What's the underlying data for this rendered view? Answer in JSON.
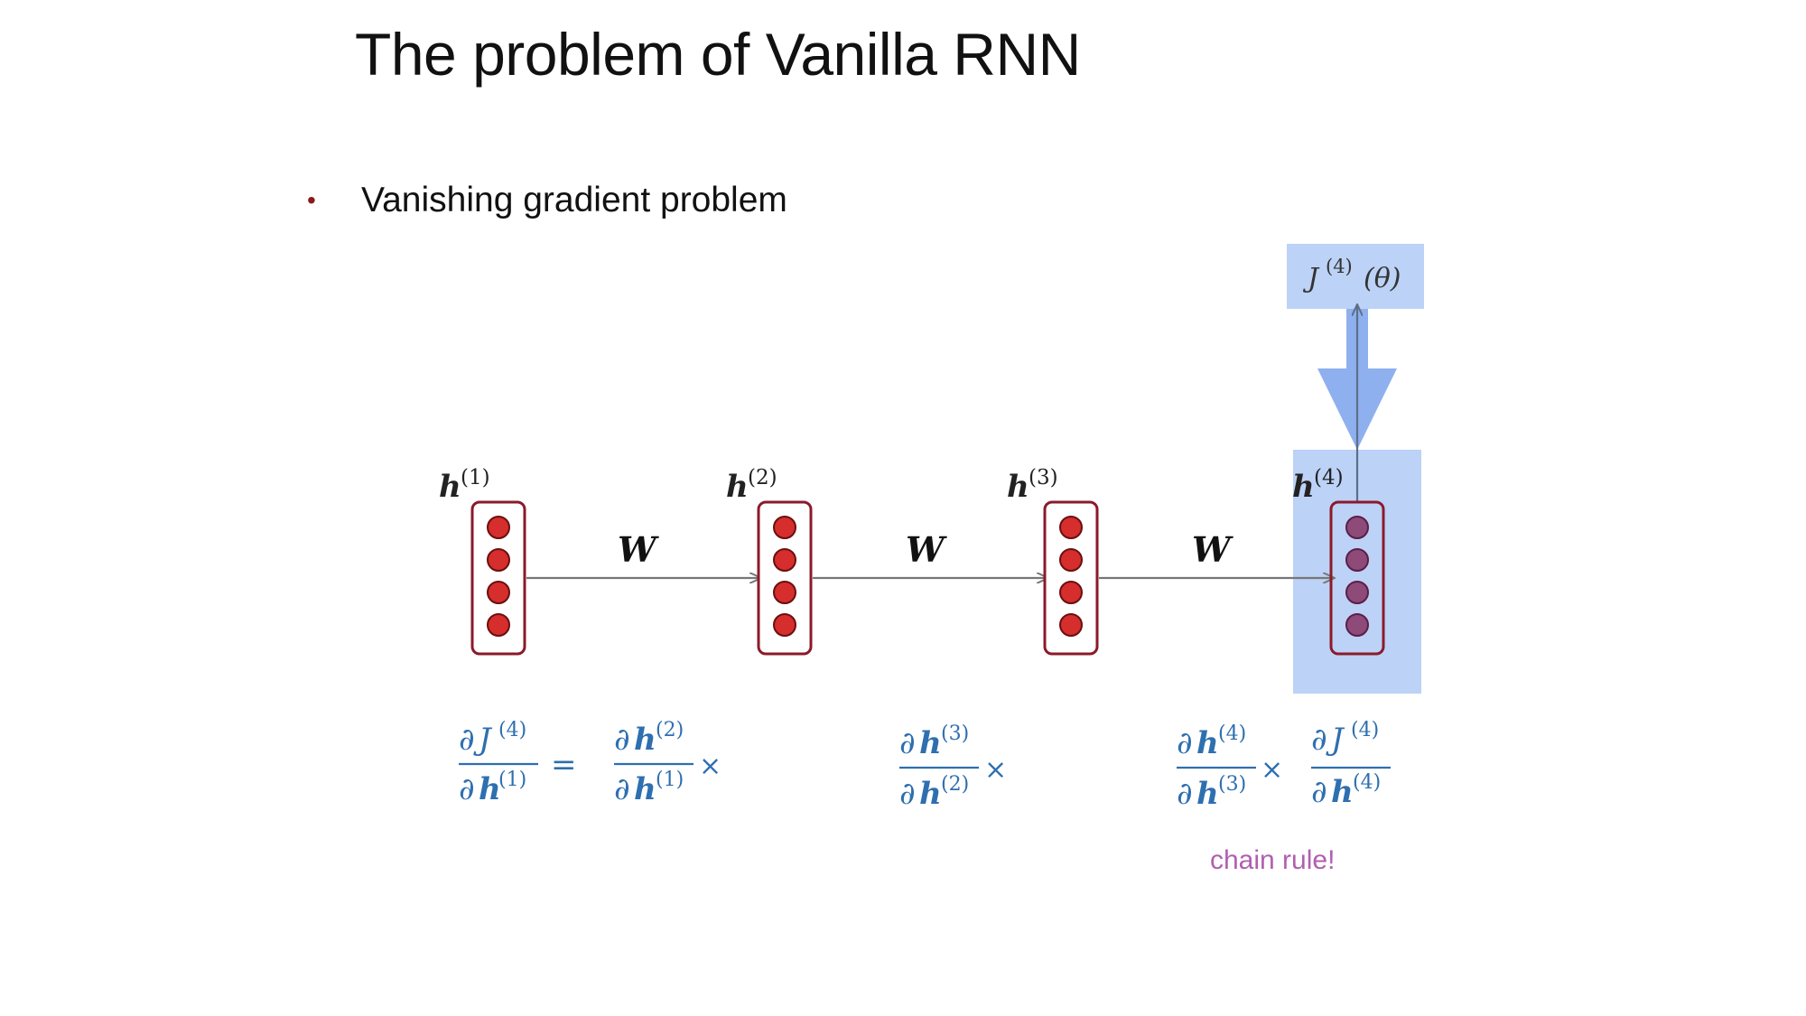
{
  "slide": {
    "title": "The problem of Vanilla RNN",
    "bullet": "Vanishing gradient problem"
  },
  "diagram": {
    "hidden_states": [
      {
        "base": "h",
        "sup": "(1)"
      },
      {
        "base": "h",
        "sup": "(2)"
      },
      {
        "base": "h",
        "sup": "(3)"
      },
      {
        "base": "h",
        "sup": "(4)"
      }
    ],
    "weight_label": "W",
    "loss_label": {
      "base": "J",
      "sup": "(4)",
      "arg": "(θ)"
    },
    "equation": {
      "lhs": {
        "num_d": "∂",
        "num_base": "J",
        "num_sup": "(4)",
        "den_d": "∂",
        "den_base": "h",
        "den_sup": "(1)"
      },
      "equals": "=",
      "times": "×",
      "terms": [
        {
          "num_d": "∂",
          "num_base": "h",
          "num_sup": "(2)",
          "den_d": "∂",
          "den_base": "h",
          "den_sup": "(1)"
        },
        {
          "num_d": "∂",
          "num_base": "h",
          "num_sup": "(3)",
          "den_d": "∂",
          "den_base": "h",
          "den_sup": "(2)"
        },
        {
          "num_d": "∂",
          "num_base": "h",
          "num_sup": "(4)",
          "den_d": "∂",
          "den_base": "h",
          "den_sup": "(3)"
        },
        {
          "num_d": "∂",
          "num_base": "J",
          "num_sup": "(4)",
          "den_d": "∂",
          "den_base": "h",
          "den_sup": "(4)"
        }
      ]
    },
    "caption": "chain rule!",
    "colors": {
      "neuron_fill": "#d62d2d",
      "neuron_fill_last": "#8e4a78",
      "box_border": "#8b1a2a",
      "arrow": "#777777",
      "highlight": "#bcd2f6",
      "gradient_arrow": "#8fb0ee",
      "equation": "#2e6fb0",
      "caption": "#b05fb0",
      "bullet": "#8b1a1a"
    }
  }
}
